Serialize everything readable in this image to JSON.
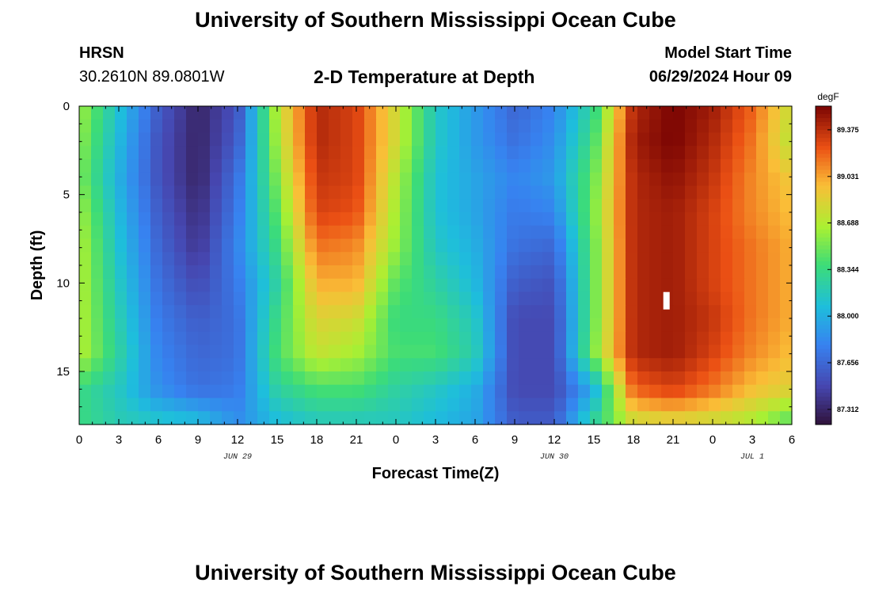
{
  "header": {
    "title": "University of Southern Mississippi Ocean Cube",
    "station": "HRSN",
    "coordinates": "30.2610N  89.0801W",
    "subtitle": "2-D Temperature at Depth",
    "model_start_label": "Model Start Time",
    "model_start_value": "06/29/2024 Hour 09"
  },
  "footer": {
    "title": "University of Southern Mississippi Ocean Cube"
  },
  "chart_data": {
    "type": "heatmap",
    "title": "2-D Temperature at Depth",
    "xlabel": "Forecast Time(Z)",
    "ylabel": "Depth (ft)",
    "x_unit": "hours since 06/29/2024 00Z",
    "xlim": [
      0,
      54
    ],
    "ylim": [
      18,
      0
    ],
    "x_ticks": [
      0,
      3,
      6,
      9,
      12,
      15,
      18,
      21,
      24,
      27,
      30,
      33,
      36,
      39,
      42,
      45,
      48,
      51,
      54
    ],
    "x_tick_labels": [
      "0",
      "3",
      "6",
      "9",
      "12",
      "15",
      "18",
      "21",
      "0",
      "3",
      "6",
      "9",
      "12",
      "15",
      "18",
      "21",
      "0",
      "3",
      "6"
    ],
    "y_ticks": [
      0,
      5,
      10,
      15
    ],
    "y_tick_labels": [
      "0",
      "5",
      "10",
      "15"
    ],
    "date_labels": [
      {
        "x": 12,
        "text": "JUN 29"
      },
      {
        "x": 36,
        "text": "JUN 30"
      },
      {
        "x": 51,
        "text": "JUL 1"
      }
    ],
    "colorbar": {
      "unit": "degF",
      "vmin": 87.2,
      "vmax": 89.55,
      "tick_values": [
        87.312,
        87.656,
        88.0,
        88.344,
        88.688,
        89.031,
        89.375
      ],
      "tick_labels": [
        "87.312",
        "87.656",
        "88.000",
        "88.344",
        "88.688",
        "89.031",
        "89.375"
      ]
    },
    "time_hours": [
      0,
      3,
      6,
      9,
      12,
      15,
      18,
      21,
      24,
      27,
      30,
      33,
      36,
      39,
      42,
      45,
      48,
      51,
      54
    ],
    "depth_ft": [
      0,
      2,
      4,
      6,
      8,
      10,
      12,
      14,
      16,
      18
    ],
    "temperature_degF": [
      [
        88.65,
        88.1,
        87.6,
        87.3,
        87.55,
        88.7,
        89.4,
        89.3,
        88.8,
        88.15,
        87.9,
        87.65,
        87.8,
        88.3,
        89.4,
        89.55,
        89.45,
        89.2,
        88.75
      ],
      [
        88.6,
        88.05,
        87.55,
        87.3,
        87.6,
        88.65,
        89.4,
        89.3,
        88.8,
        88.15,
        87.9,
        87.7,
        87.85,
        88.4,
        89.45,
        89.55,
        89.4,
        89.15,
        88.7
      ],
      [
        88.55,
        88.0,
        87.55,
        87.3,
        87.7,
        88.55,
        89.35,
        89.3,
        88.7,
        88.1,
        87.95,
        87.8,
        87.9,
        88.5,
        89.4,
        89.5,
        89.35,
        89.1,
        88.9
      ],
      [
        88.65,
        88.05,
        87.6,
        87.35,
        87.75,
        88.45,
        89.3,
        89.25,
        88.65,
        88.1,
        87.95,
        87.75,
        87.8,
        88.55,
        89.4,
        89.45,
        89.3,
        89.1,
        88.95
      ],
      [
        88.7,
        88.1,
        87.65,
        87.4,
        87.8,
        88.35,
        89.15,
        89.1,
        88.6,
        88.15,
        88.0,
        87.7,
        87.65,
        88.5,
        89.4,
        89.45,
        89.3,
        89.15,
        89.0
      ],
      [
        88.7,
        88.15,
        87.7,
        87.5,
        87.75,
        88.25,
        89.0,
        89.0,
        88.45,
        88.25,
        88.05,
        87.6,
        87.55,
        88.5,
        89.4,
        89.45,
        89.3,
        89.15,
        89.0
      ],
      [
        88.7,
        88.2,
        87.75,
        87.6,
        87.7,
        88.35,
        88.85,
        88.8,
        88.35,
        88.35,
        88.15,
        87.5,
        87.5,
        88.5,
        89.4,
        89.45,
        89.35,
        89.15,
        89.0
      ],
      [
        88.7,
        88.25,
        87.8,
        87.65,
        87.7,
        88.4,
        88.75,
        88.65,
        88.4,
        88.4,
        88.2,
        87.5,
        87.5,
        88.55,
        89.4,
        89.45,
        89.3,
        89.1,
        88.95
      ],
      [
        88.35,
        88.15,
        87.85,
        87.7,
        87.75,
        88.25,
        88.4,
        88.4,
        88.25,
        88.15,
        88.0,
        87.5,
        87.5,
        88.0,
        89.2,
        89.3,
        89.15,
        88.95,
        88.85
      ],
      [
        88.35,
        88.2,
        88.15,
        88.1,
        87.85,
        88.05,
        88.15,
        88.15,
        88.15,
        88.05,
        87.95,
        87.6,
        87.6,
        88.3,
        88.75,
        88.8,
        88.75,
        88.65,
        88.4
      ]
    ],
    "missing_cell": {
      "time_hour": 44.5,
      "depth_ft": 11.0,
      "color": "#ffffff"
    }
  }
}
